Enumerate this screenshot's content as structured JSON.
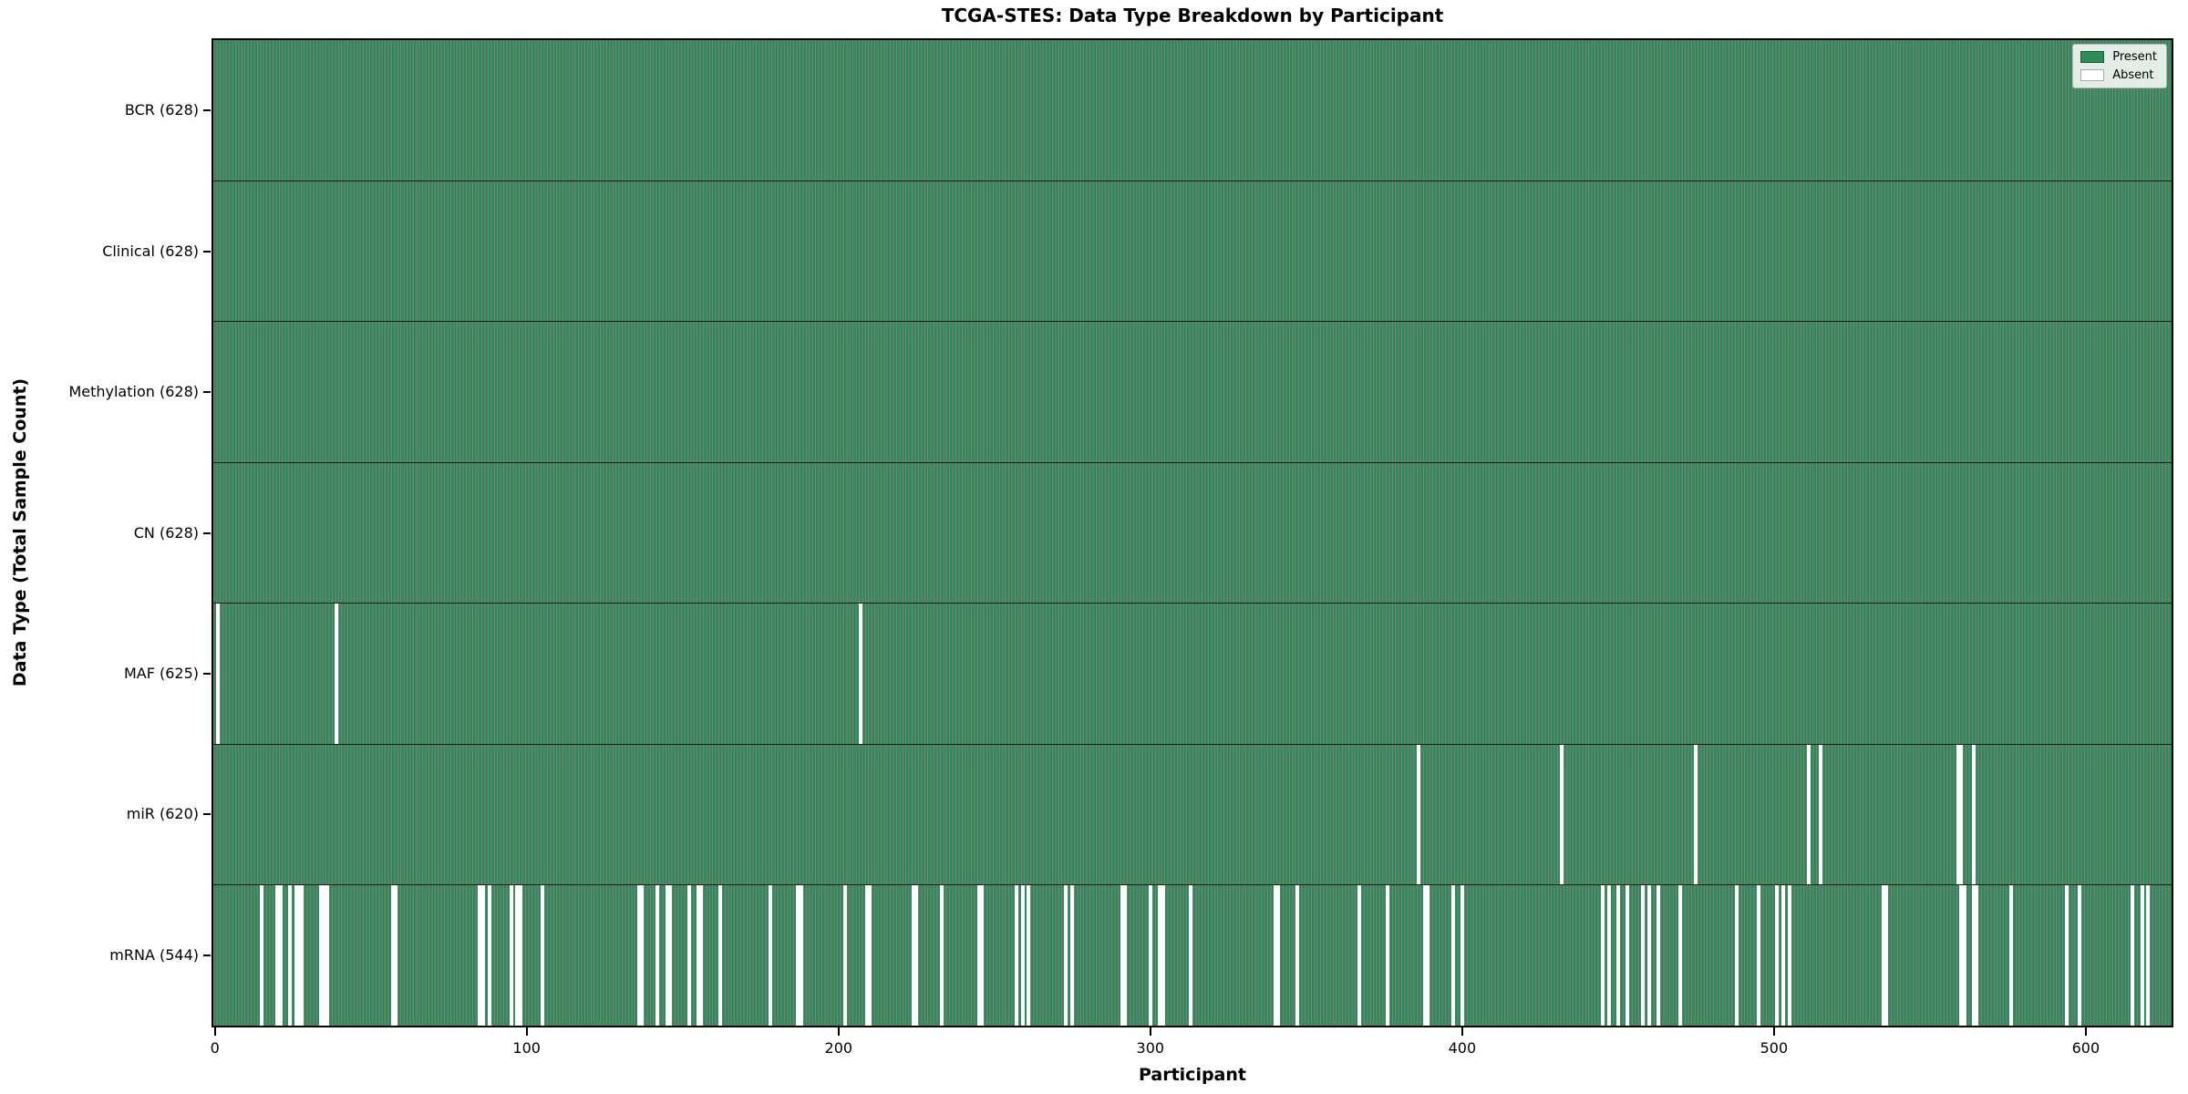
{
  "title": "TCGA-STES: Data Type Breakdown by Participant",
  "chart_data": {
    "type": "heatmap",
    "title": "TCGA-STES: Data Type Breakdown by Participant",
    "xlabel": "Participant",
    "ylabel": "Data Type (Total Sample Count)",
    "x_range": [
      0,
      628
    ],
    "x_ticks": [
      0,
      100,
      200,
      300,
      400,
      500,
      600
    ],
    "grid": false,
    "legend_position": "upper right",
    "legend": {
      "present": "Present",
      "absent": "Absent"
    },
    "colors": {
      "present": "#2e8b57",
      "absent": "#ffffff",
      "bar_edge": "rgba(0,0,0,0.5)",
      "row_divider": "rgba(0,0,0,0.8)"
    },
    "rows": [
      {
        "name": "BCR",
        "label": "BCR (628)",
        "total": 628,
        "absent_participants": []
      },
      {
        "name": "Clinical",
        "label": "Clinical (628)",
        "total": 628,
        "absent_participants": []
      },
      {
        "name": "Methylation",
        "label": "Methylation (628)",
        "total": 628,
        "absent_participants": []
      },
      {
        "name": "CN",
        "label": "CN (628)",
        "total": 628,
        "absent_participants": []
      },
      {
        "name": "MAF",
        "label": "MAF (625)",
        "total": 625,
        "absent_participants": [
          1,
          39,
          207
        ]
      },
      {
        "name": "miR",
        "label": "miR (620)",
        "total": 620,
        "absent_participants": [
          386,
          432,
          475,
          511,
          515,
          559,
          560,
          564
        ]
      },
      {
        "name": "mRNA",
        "label": "mRNA (544)",
        "total": 544,
        "absent_participants": [
          15,
          20,
          21,
          24,
          26,
          27,
          28,
          34,
          35,
          36,
          57,
          58,
          85,
          86,
          88,
          95,
          97,
          98,
          105,
          136,
          137,
          142,
          145,
          146,
          152,
          155,
          156,
          162,
          178,
          187,
          188,
          202,
          209,
          210,
          224,
          225,
          233,
          245,
          246,
          257,
          259,
          261,
          273,
          275,
          291,
          292,
          300,
          303,
          304,
          313,
          340,
          341,
          347,
          367,
          376,
          388,
          389,
          397,
          400,
          445,
          447,
          450,
          453,
          458,
          460,
          463,
          470,
          488,
          495,
          501,
          503,
          505,
          535,
          536,
          560,
          561,
          564,
          565,
          576,
          594,
          598,
          615,
          618,
          620
        ]
      }
    ]
  }
}
